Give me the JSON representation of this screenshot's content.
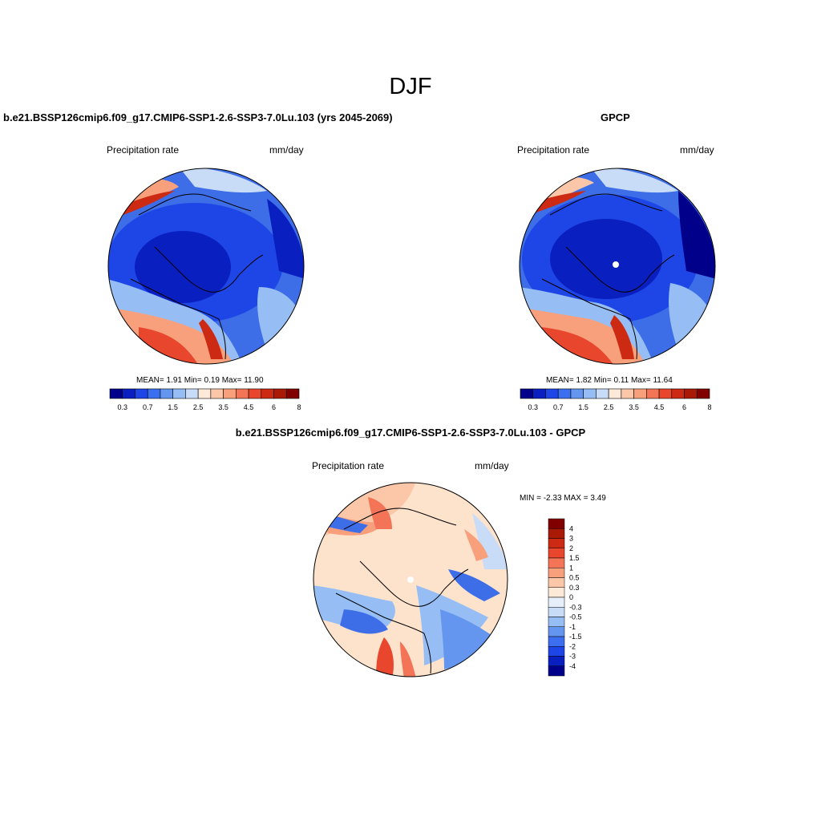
{
  "main_title": "DJF",
  "panels": {
    "model": {
      "title": "b.e21.BSSP126cmip6.f09_g17.CMIP6-SSP1-2.6-SSP3-7.0Lu.103 (yrs 2045-2069)",
      "left_label": "Precipitation rate",
      "right_label": "mm/day",
      "stats": "MEAN=   1.91  Min=    0.19  Max=  11.90"
    },
    "obs": {
      "title": "GPCP",
      "left_label": "Precipitation rate",
      "right_label": "mm/day",
      "stats": "MEAN=   1.82  Min=    0.11  Max=  11.64"
    },
    "diff": {
      "title": "b.e21.BSSP126cmip6.f09_g17.CMIP6-SSP1-2.6-SSP3-7.0Lu.103 - GPCP",
      "left_label": "Precipitation rate",
      "right_label": "mm/day",
      "stats": "MIN =  -2.33 MAX =   3.49"
    }
  },
  "abs_colorbar": {
    "colors": [
      "#00008b",
      "#0a1fbf",
      "#1e46e6",
      "#3c6ef0",
      "#6496f0",
      "#96bef5",
      "#c8dcf8",
      "#fde9d8",
      "#fcc7a8",
      "#f8a07c",
      "#f37456",
      "#e8462d",
      "#cc2a12",
      "#a81a06",
      "#800000"
    ],
    "labels": [
      "0.3",
      "0.7",
      "1.5",
      "2.5",
      "3.5",
      "4.5",
      "6",
      "8"
    ]
  },
  "diff_colorbar": {
    "colors": [
      "#800000",
      "#a81a06",
      "#cc2a12",
      "#e8462d",
      "#f37456",
      "#f8a07c",
      "#fcc7a8",
      "#fde9d8",
      "#e6eef9",
      "#c8dcf8",
      "#96bef5",
      "#6496f0",
      "#3c6ef0",
      "#1e46e6",
      "#0a1fbf",
      "#00008b"
    ],
    "labels": [
      "4",
      "3",
      "2",
      "1.5",
      "1",
      "0.5",
      "0.3",
      "0",
      "-0.3",
      "-0.5",
      "-1",
      "-1.5",
      "-2",
      "-3",
      "-4"
    ]
  },
  "colors": {
    "deep_blue": "#1a3fd6",
    "mid_blue": "#3d6ee8",
    "light_blue": "#9ec3f3",
    "peach": "#fde2cc",
    "salmon": "#f59a76",
    "red": "#e8462d",
    "dark_red": "#a81a06",
    "coastline": "#000000"
  }
}
